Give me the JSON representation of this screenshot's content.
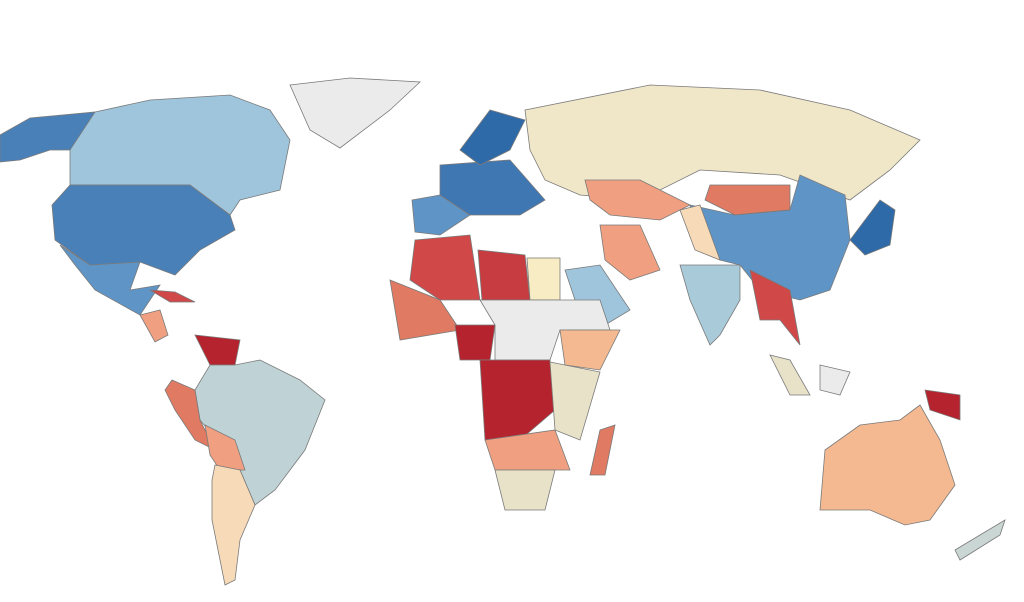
{
  "map": {
    "type": "choropleth",
    "ocean": "#ffffff",
    "border": "#7a7a7a",
    "regions": [
      {
        "color": "#4a80b8"
      },
      {
        "color": "#9ec5dc"
      },
      {
        "color": "#ebebeb"
      },
      {
        "color": "#4a80b8"
      },
      {
        "color": "#5f95c6"
      },
      {
        "color": "#f0a080"
      },
      {
        "color": "#d04848"
      },
      {
        "color": "#b5242e"
      },
      {
        "color": "#bfd3d6"
      },
      {
        "color": "#e07a62"
      },
      {
        "color": "#f0a080"
      },
      {
        "color": "#f7dab8"
      },
      {
        "color": "#5f95c6"
      },
      {
        "color": "#3f77b3"
      },
      {
        "color": "#2f6aa8"
      },
      {
        "color": "#f0e6c8"
      },
      {
        "color": "#f0a080"
      },
      {
        "color": "#e07a62"
      },
      {
        "color": "#5f95c6"
      },
      {
        "color": "#2f6aa8"
      },
      {
        "color": "#a9cbd9"
      },
      {
        "color": "#9ec5dc"
      },
      {
        "color": "#f0a080"
      },
      {
        "color": "#d04848"
      },
      {
        "color": "#c63c40"
      },
      {
        "color": "#f7ecc4"
      },
      {
        "color": "#ebebeb"
      },
      {
        "color": "#e07a62"
      },
      {
        "color": "#b5242e"
      },
      {
        "color": "#b5242e"
      },
      {
        "color": "#f4b990"
      },
      {
        "color": "#e8e2c8"
      },
      {
        "color": "#e07a62"
      },
      {
        "color": "#f0a080"
      },
      {
        "color": "#f7dab8"
      },
      {
        "color": "#e8e2c8"
      },
      {
        "color": "#d04848"
      },
      {
        "color": "#e8e2c8"
      },
      {
        "color": "#b5242e"
      },
      {
        "color": "#f4b990"
      },
      {
        "color": "#c9d6d4"
      },
      {
        "color": "#ebebeb"
      }
    ]
  }
}
